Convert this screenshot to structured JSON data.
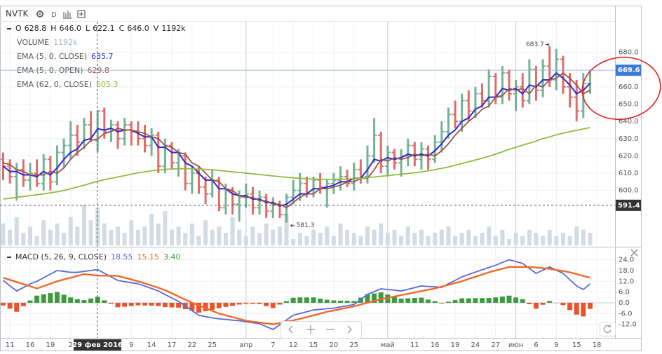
{
  "chart_data": {
    "type": "ohlc",
    "symbol": "NVTK",
    "interval": "D",
    "ohlc_legend": [
      {
        "key": "O",
        "text": "628.8"
      },
      {
        "key": "H",
        "text": "646.0"
      },
      {
        "key": "L",
        "text": "622.1"
      },
      {
        "key": "C",
        "text": "646.0"
      },
      {
        "key": "V",
        "text": "1192k"
      }
    ],
    "categories": [
      null,
      "11",
      null,
      null,
      "16",
      null,
      null,
      "19",
      null,
      null,
      "2",
      null,
      null,
      null,
      null,
      null,
      null,
      null,
      null,
      "9",
      null,
      null,
      "14",
      null,
      null,
      "17",
      null,
      null,
      "22",
      null,
      null,
      "25",
      null,
      null,
      null,
      null,
      "апр",
      null,
      null,
      null,
      "7",
      null,
      null,
      "12",
      null,
      null,
      "15",
      null,
      null,
      "20",
      null,
      null,
      "25",
      null,
      null,
      null,
      null,
      "май",
      null,
      null,
      null,
      "11",
      null,
      null,
      "16",
      null,
      null,
      "19",
      null,
      null,
      "24",
      null,
      null,
      "27",
      null,
      null,
      "июн",
      null,
      null,
      "6",
      null,
      null,
      "9",
      null,
      null,
      "15",
      null,
      null,
      "18"
    ],
    "bars": [
      [
        618,
        622,
        606,
        614
      ],
      [
        614,
        618,
        604,
        608
      ],
      [
        608,
        616,
        594,
        612
      ],
      [
        612,
        618,
        602,
        606
      ],
      [
        606,
        616,
        600,
        610
      ],
      [
        610,
        618,
        602,
        604
      ],
      [
        604,
        621,
        600,
        618
      ],
      [
        618,
        620,
        600,
        605
      ],
      [
        605,
        626,
        603,
        622
      ],
      [
        622,
        630,
        613,
        626
      ],
      [
        626,
        640,
        618,
        632
      ],
      [
        632,
        638,
        620,
        628
      ],
      [
        628,
        642,
        624,
        638
      ],
      [
        638,
        646,
        628,
        632
      ],
      [
        628.8,
        646,
        622.1,
        646
      ],
      [
        646,
        648,
        630,
        634
      ],
      [
        634,
        641,
        628,
        638
      ],
      [
        638,
        640,
        624,
        630
      ],
      [
        630,
        642,
        626,
        638
      ],
      [
        638,
        640,
        626,
        634
      ],
      [
        634,
        640,
        626,
        630
      ],
      [
        630,
        638,
        622,
        626
      ],
      [
        626,
        636,
        620,
        632
      ],
      [
        632,
        634,
        610,
        614
      ],
      [
        614,
        630,
        610,
        626
      ],
      [
        626,
        628,
        612,
        616
      ],
      [
        616,
        624,
        608,
        620
      ],
      [
        620,
        622,
        600,
        604
      ],
      [
        604,
        614,
        598,
        610
      ],
      [
        610,
        614,
        598,
        602
      ],
      [
        602,
        608,
        592,
        598
      ],
      [
        598,
        612,
        596,
        606
      ],
      [
        606,
        608,
        588,
        590
      ],
      [
        590,
        604,
        586,
        600
      ],
      [
        600,
        602,
        586,
        592
      ],
      [
        592,
        600,
        582,
        596
      ],
      [
        596,
        604,
        590,
        598
      ],
      [
        598,
        602,
        586,
        590
      ],
      [
        590,
        600,
        586,
        596
      ],
      [
        596,
        598,
        584,
        588
      ],
      [
        588,
        596,
        584,
        592
      ],
      [
        592,
        594,
        584,
        586
      ],
      [
        586,
        598,
        581.3,
        596
      ],
      [
        596,
        606,
        592,
        600
      ],
      [
        600,
        610,
        594,
        604
      ],
      [
        604,
        608,
        596,
        598
      ],
      [
        598,
        608,
        596,
        606
      ],
      [
        606,
        610,
        598,
        602
      ],
      [
        602,
        606,
        590,
        604
      ],
      [
        604,
        610,
        598,
        606
      ],
      [
        606,
        614,
        600,
        608
      ],
      [
        608,
        612,
        602,
        604
      ],
      [
        604,
        616,
        600,
        612
      ],
      [
        612,
        618,
        604,
        608
      ],
      [
        608,
        626,
        604,
        620
      ],
      [
        620,
        642,
        616,
        632
      ],
      [
        632,
        634,
        610,
        614
      ],
      [
        614,
        626,
        608,
        622
      ],
      [
        622,
        624,
        612,
        616
      ],
      [
        616,
        624,
        608,
        620
      ],
      [
        620,
        630,
        614,
        626
      ],
      [
        626,
        628,
        614,
        618
      ],
      [
        618,
        628,
        612,
        624
      ],
      [
        624,
        626,
        612,
        618
      ],
      [
        618,
        632,
        616,
        628
      ],
      [
        628,
        640,
        622,
        634
      ],
      [
        634,
        648,
        630,
        644
      ],
      [
        644,
        652,
        636,
        640
      ],
      [
        640,
        656,
        634,
        652
      ],
      [
        652,
        658,
        640,
        646
      ],
      [
        646,
        660,
        642,
        656
      ],
      [
        656,
        662,
        648,
        652
      ],
      [
        652,
        670,
        648,
        666
      ],
      [
        666,
        668,
        650,
        654
      ],
      [
        654,
        672,
        650,
        668
      ],
      [
        668,
        670,
        652,
        656
      ],
      [
        656,
        664,
        646,
        660
      ],
      [
        660,
        668,
        648,
        652
      ],
      [
        652,
        676,
        650,
        670
      ],
      [
        670,
        672,
        652,
        658
      ],
      [
        658,
        676,
        654,
        672
      ],
      [
        672,
        683.7,
        660,
        664
      ],
      [
        664,
        682,
        658,
        676
      ],
      [
        676,
        678,
        656,
        660
      ],
      [
        660,
        668,
        648,
        654
      ],
      [
        654,
        664,
        640,
        646
      ],
      [
        646,
        668,
        642,
        662
      ],
      [
        662,
        670,
        656,
        669.6
      ],
      null
    ],
    "ylim": [
      568.2,
      697.7
    ],
    "yticks": [
      {
        "value": 680,
        "label": "680.0"
      },
      {
        "value": 670,
        "label": "670.0"
      },
      {
        "value": 660,
        "label": "660.0"
      },
      {
        "value": 650,
        "label": "650.0"
      },
      {
        "value": 640,
        "label": "640.0"
      },
      {
        "value": 630,
        "label": "630.0"
      },
      {
        "value": 620,
        "label": "620.0"
      },
      {
        "value": 610,
        "label": "610.0"
      },
      {
        "value": 600,
        "label": "600.0"
      }
    ],
    "grid": true,
    "up_color": "#5fa585",
    "down_color": "#d8574d",
    "volume": {
      "name": "VOLUME",
      "legend_value": "1192k",
      "color": "#d3dbe3",
      "values": [
        700,
        500,
        900,
        400,
        600,
        300,
        800,
        500,
        700,
        400,
        900,
        600,
        1300,
        800,
        1192,
        700,
        500,
        600,
        400,
        800,
        500,
        600,
        1000,
        700,
        1100,
        500,
        600,
        400,
        700,
        300,
        800,
        500,
        600,
        400,
        900,
        500,
        300,
        600,
        400,
        700,
        500,
        600,
        1000,
        200,
        400,
        300,
        500,
        400,
        600,
        300,
        700,
        500,
        400,
        300,
        600,
        500,
        700,
        400,
        500,
        300,
        600,
        400,
        500,
        300,
        400,
        500,
        600,
        300,
        400,
        500,
        300,
        400,
        600,
        300,
        500,
        200,
        400,
        300,
        500,
        400,
        300,
        500,
        300,
        400,
        300,
        600,
        500,
        400,
        null
      ]
    },
    "series": [
      {
        "name": "EMA (5, 0, CLOSE)",
        "color": "#2b2bd1",
        "legend_value": "635.7",
        "values": [
          614,
          611,
          611,
          609,
          609,
          608,
          611,
          609,
          613,
          618,
          622,
          624,
          629,
          630,
          635.7,
          635,
          636,
          634,
          635,
          635,
          633,
          631,
          631,
          625,
          625,
          622,
          622,
          616,
          614,
          610,
          606,
          606,
          601,
          601,
          598,
          597,
          597,
          595,
          595,
          593,
          593,
          591,
          592,
          595,
          598,
          598,
          601,
          601,
          602,
          603,
          605,
          605,
          607,
          607,
          612,
          618,
          617,
          619,
          618,
          619,
          621,
          620,
          621,
          620,
          623,
          627,
          632,
          635,
          640,
          642,
          647,
          649,
          654,
          654,
          659,
          658,
          659,
          656,
          661,
          660,
          664,
          664,
          668,
          665,
          661,
          656,
          658,
          662,
          null
        ]
      },
      {
        "name": "EMA (5, 0, OPEN)",
        "color": "#a0524a",
        "legend_value": "629.8",
        "values": [
          616,
          615,
          612,
          611,
          609,
          609,
          609,
          611,
          610,
          613,
          618,
          622,
          625,
          629,
          629.8,
          633,
          634,
          636,
          635,
          635,
          634,
          633,
          631,
          630,
          626,
          625,
          622,
          621,
          616,
          614,
          610,
          606,
          605,
          601,
          600,
          597,
          596,
          596,
          594,
          594,
          592,
          592,
          590,
          593,
          596,
          598,
          598,
          601,
          601,
          602,
          603,
          605,
          605,
          607,
          607,
          612,
          618,
          617,
          619,
          618,
          619,
          621,
          620,
          621,
          620,
          623,
          627,
          632,
          636,
          640,
          643,
          647,
          649,
          654,
          655,
          659,
          658,
          659,
          656,
          661,
          660,
          664,
          665,
          668,
          665,
          661,
          656,
          658,
          null
        ]
      },
      {
        "name": "EMA (62, 0, CLOSE)",
        "color": "#8fbc3a",
        "legend_value": "605.3",
        "values": [
          595,
          595.5,
          596,
          596.5,
          597,
          597.5,
          598,
          598.6,
          599.2,
          600,
          601,
          602,
          603,
          604.2,
          605.3,
          606.2,
          607,
          607.8,
          608.6,
          609.4,
          610.2,
          610.8,
          611.4,
          611.8,
          612.2,
          612.4,
          612.6,
          612.6,
          612.6,
          612.4,
          612.2,
          612,
          611.6,
          611.2,
          610.8,
          610.4,
          610,
          609.6,
          609.2,
          608.8,
          608.4,
          608,
          607.6,
          607.3,
          607,
          606.8,
          606.6,
          606.5,
          606.4,
          606.4,
          606.5,
          606.6,
          606.8,
          607,
          607.4,
          607.8,
          608.2,
          608.6,
          609,
          609.4,
          609.8,
          610.2,
          610.8,
          611.4,
          612,
          612.8,
          613.6,
          614.6,
          615.6,
          616.6,
          617.6,
          618.6,
          619.8,
          621,
          622.4,
          623.8,
          625,
          626.2,
          627.4,
          628.6,
          630,
          631,
          632.2,
          633.2,
          634,
          634.8,
          635.6,
          636.4,
          null
        ]
      }
    ],
    "last_price": 669.6,
    "crosshair": {
      "price": 591.4,
      "price_label": "591.4",
      "time_label": "29 фев 2016"
    },
    "high_label": "683.7",
    "low_label": "581.3",
    "macd": {
      "name": "MACD (5, 26, 9, CLOSE)",
      "ylim": [
        -18.8,
        30.1
      ],
      "yticks": [
        {
          "value": 24,
          "label": "24.0"
        },
        {
          "value": 18,
          "label": "18.0"
        },
        {
          "value": 12,
          "label": "12.0"
        },
        {
          "value": 6,
          "label": "6.0"
        },
        {
          "value": 0,
          "label": "0.0"
        },
        {
          "value": -6,
          "label": "-6.0"
        },
        {
          "value": -12,
          "label": "-12.0"
        }
      ],
      "line": {
        "color": "#5a68d8",
        "legend_value": "18.55",
        "values": [
          12.5,
          9.5,
          6.6,
          8.5,
          10.5,
          12,
          14,
          16,
          18,
          17.5,
          17,
          17,
          17.5,
          18,
          18.55,
          16.5,
          14.5,
          12.5,
          11.8,
          11.2,
          10.6,
          9.3,
          8,
          6.6,
          4.6,
          2.7,
          0.8,
          -1.8,
          -4.4,
          -7,
          -7.7,
          -8.4,
          -9,
          -9.3,
          -9.7,
          -10,
          -10.6,
          -11.1,
          -11.7,
          -13.3,
          -14.9,
          -12.3,
          -9.6,
          -7,
          -6,
          -5,
          -4,
          -3.7,
          -3.3,
          -3,
          -2.3,
          -1.7,
          -1,
          1.9,
          4.7,
          6.2,
          7.8,
          7.4,
          7,
          6.6,
          7.5,
          8.5,
          9.4,
          9.1,
          8.9,
          8.6,
          10.6,
          12.5,
          14.5,
          15.8,
          17.1,
          18.4,
          19.7,
          21,
          22.5,
          24,
          23,
          22,
          19.2,
          16.4,
          18.2,
          20,
          18.2,
          16.4,
          12.9,
          9.4,
          7.4,
          10.6,
          null
        ]
      },
      "signal": {
        "color": "#f0692a",
        "legend_value": "15.15",
        "values": [
          14,
          12.8,
          11.6,
          10.4,
          9.2,
          8,
          9.3,
          10.6,
          12,
          13,
          14,
          15,
          16,
          15.6,
          15.15,
          15.1,
          15.1,
          15,
          14,
          13,
          12,
          10.8,
          9.6,
          8.4,
          7,
          5.3,
          3.5,
          1.8,
          0,
          -1.5,
          -3,
          -4.5,
          -6,
          -7,
          -8,
          -9,
          -10,
          -10.5,
          -11,
          -11.5,
          -12,
          -11.3,
          -10.5,
          -9.8,
          -9,
          -8,
          -7,
          -6,
          -5,
          -4.3,
          -3.5,
          -2.8,
          -2,
          -1,
          0,
          1,
          2,
          2.8,
          3.5,
          4.3,
          5,
          5.8,
          6.5,
          7.3,
          8,
          9,
          10,
          11,
          12,
          13.3,
          14.5,
          15.8,
          17,
          18,
          19,
          20,
          20,
          20,
          20,
          19.7,
          19.3,
          19,
          18.3,
          17.7,
          17,
          16,
          15,
          14,
          null
        ]
      },
      "histogram": {
        "up_color": "#3e9a3e",
        "down_color": "#e8532b",
        "legend_value": "3.40",
        "values": [
          -1.5,
          -3.3,
          -5,
          -1.9,
          1.3,
          4,
          4.7,
          5.4,
          6,
          4.5,
          3,
          2,
          1.5,
          2.4,
          3.4,
          1.4,
          -0.6,
          -2.5,
          -2.2,
          -1.8,
          -1.4,
          -1.5,
          -1.6,
          -1.8,
          -2.4,
          -2.6,
          -2.7,
          -3.6,
          -4.4,
          -5.5,
          -4.7,
          -3.9,
          -3,
          -2.3,
          -1.7,
          -1,
          -0.6,
          -0.6,
          -0.7,
          -1.8,
          -2.9,
          -1,
          0.9,
          2.8,
          3,
          3,
          3,
          2.3,
          1.7,
          1.3,
          1.2,
          1.1,
          1,
          2.9,
          4.7,
          5.2,
          5.8,
          4.6,
          3.5,
          2.3,
          2.5,
          2.7,
          2.9,
          1.8,
          0.9,
          -0.4,
          0.6,
          1.5,
          2.5,
          2.5,
          2.6,
          2.6,
          2.7,
          3,
          3.5,
          4,
          3,
          2,
          -0.8,
          -3.3,
          -1.1,
          1,
          -0.1,
          -1.3,
          -4.1,
          -6.6,
          -7.6,
          -3.4,
          null
        ]
      }
    }
  }
}
